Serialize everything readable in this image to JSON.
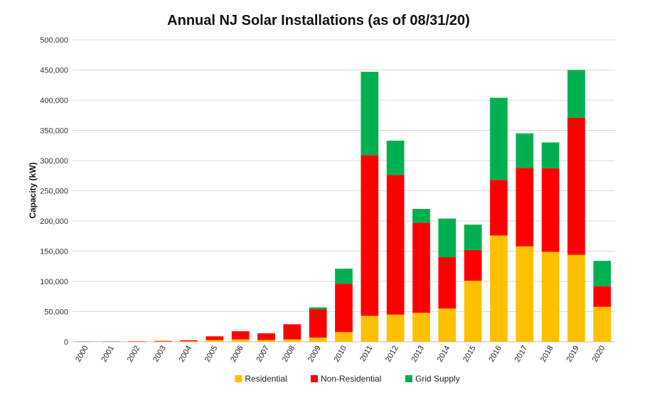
{
  "chart_data": {
    "type": "bar",
    "stacked": true,
    "title": "Annual NJ Solar Installations (as of 08/31/20)",
    "xlabel": "",
    "ylabel": "Capacity (kW)",
    "ylim": [
      0,
      500000
    ],
    "yticks": [
      "0",
      "50,000",
      "100,000",
      "150,000",
      "200,000",
      "250,000",
      "300,000",
      "350,000",
      "400,000",
      "450,000",
      "500,000"
    ],
    "ytick_values": [
      0,
      50000,
      100000,
      150000,
      200000,
      250000,
      300000,
      350000,
      400000,
      450000,
      500000
    ],
    "grid": true,
    "legend_position": "bottom",
    "categories": [
      "2000",
      "2001",
      "2002",
      "2003",
      "2004",
      "2005",
      "2006",
      "2007",
      "2008",
      "2009",
      "2010",
      "2011",
      "2012",
      "2013",
      "2014",
      "2015",
      "2016",
      "2017",
      "2018",
      "2019",
      "2020"
    ],
    "series": [
      {
        "name": "Residential",
        "color": "#FFC000",
        "values": [
          200,
          300,
          400,
          600,
          800,
          3000,
          4000,
          3000,
          4000,
          7000,
          16000,
          43000,
          45000,
          48000,
          55000,
          101000,
          176000,
          158000,
          149000,
          144000,
          58000
        ]
      },
      {
        "name": "Non-Residential",
        "color": "#FF0000",
        "values": [
          300,
          400,
          500,
          900,
          1700,
          6000,
          13500,
          11000,
          25000,
          47000,
          80000,
          266000,
          231000,
          149000,
          85000,
          51000,
          92000,
          130000,
          138000,
          227000,
          34000
        ]
      },
      {
        "name": "Grid Supply",
        "color": "#00B050",
        "values": [
          0,
          0,
          0,
          0,
          0,
          0,
          0,
          0,
          0,
          3000,
          25000,
          138000,
          57000,
          23000,
          64000,
          42000,
          136000,
          57000,
          43000,
          79000,
          42000
        ]
      }
    ]
  }
}
